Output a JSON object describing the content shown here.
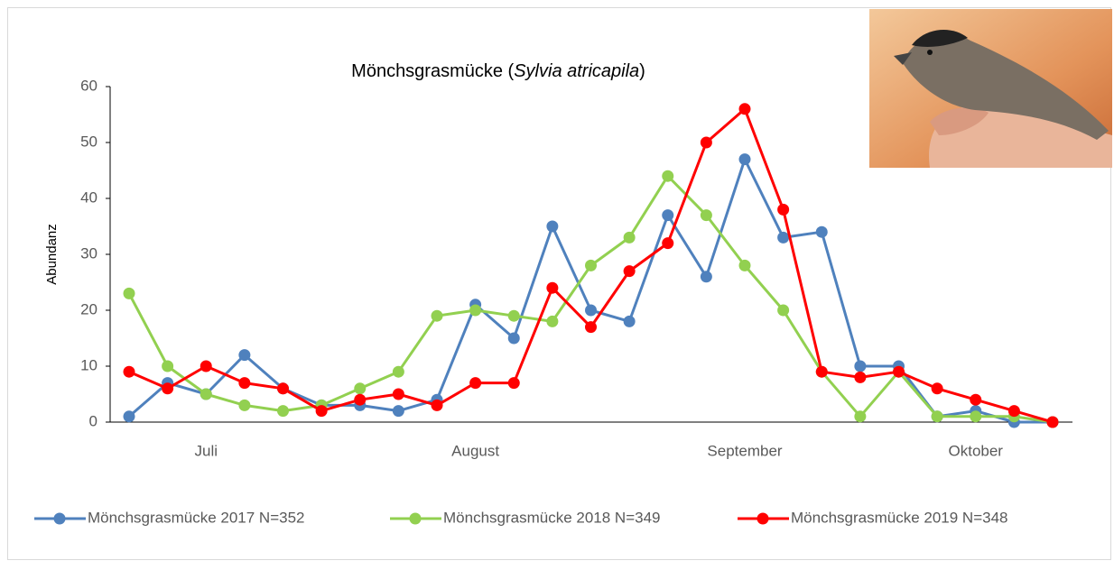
{
  "chart_data": {
    "type": "line",
    "title": [
      "Mönchsgrasmücke (",
      "Sylvia atricapila",
      ")"
    ],
    "y_label": "Abundanz",
    "categories": [
      null,
      null,
      "Juli",
      null,
      null,
      null,
      null,
      null,
      null,
      "August",
      null,
      null,
      null,
      null,
      null,
      null,
      "September",
      null,
      null,
      null,
      null,
      null,
      "Oktober",
      null,
      null
    ],
    "ylim": [
      0,
      60
    ],
    "yticks": [
      0,
      10,
      20,
      30,
      40,
      50,
      60
    ],
    "grid": false,
    "legend": "bottom",
    "series": [
      {
        "name": "Mönchsgrasmücke 2017 N=352",
        "color": "#4f81bd",
        "values": [
          1,
          7,
          5,
          12,
          6,
          3,
          3,
          2,
          4,
          21,
          15,
          35,
          20,
          18,
          37,
          26,
          47,
          33,
          34,
          10,
          10,
          1,
          2,
          0,
          0
        ]
      },
      {
        "name": "Mönchsgrasmücke 2018 N=349",
        "color": "#92d050",
        "values": [
          23,
          10,
          5,
          3,
          2,
          3,
          6,
          9,
          19,
          20,
          19,
          18,
          28,
          33,
          44,
          37,
          28,
          20,
          9,
          1,
          9,
          1,
          1,
          1,
          0
        ]
      },
      {
        "name": "Mönchsgrasmücke 2019 N=348",
        "color": "#ff0000",
        "values": [
          9,
          6,
          10,
          7,
          6,
          2,
          4,
          5,
          3,
          7,
          7,
          24,
          17,
          27,
          32,
          50,
          56,
          38,
          9,
          8,
          9,
          6,
          4,
          2,
          0
        ]
      }
    ]
  }
}
